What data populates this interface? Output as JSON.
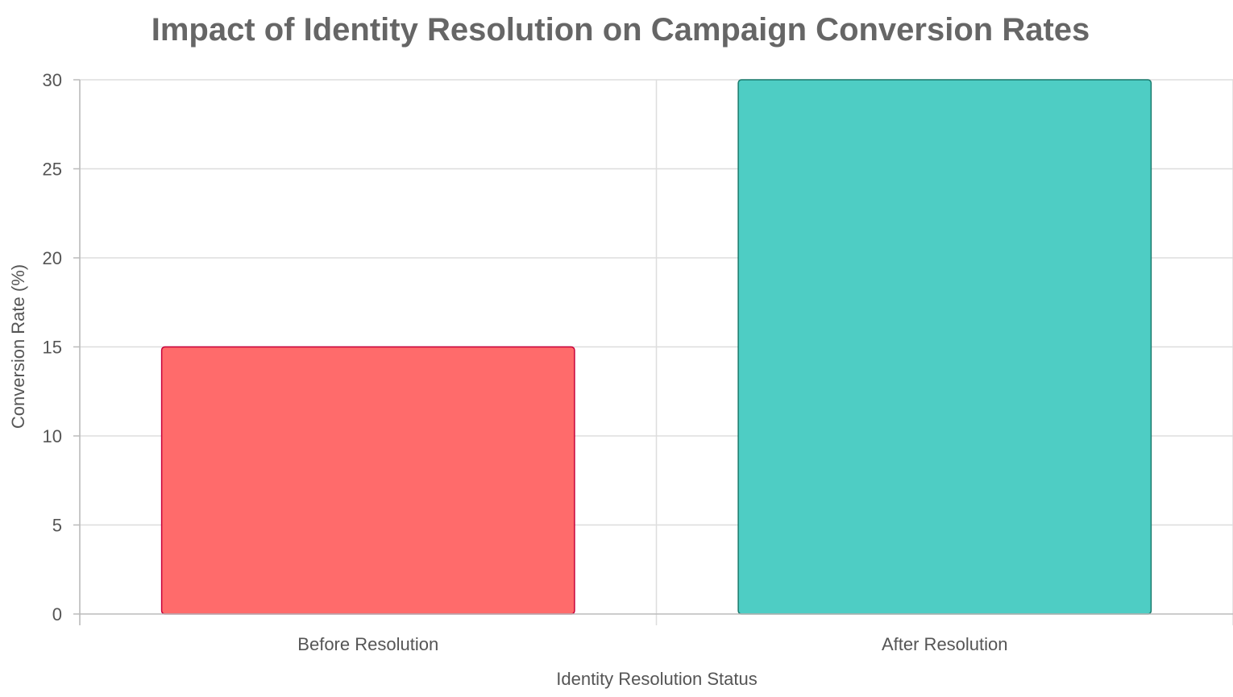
{
  "chart_data": {
    "type": "bar",
    "title": "Impact of Identity Resolution on Campaign Conversion Rates",
    "xlabel": "Identity Resolution Status",
    "ylabel": "Conversion Rate (%)",
    "categories": [
      "Before Resolution",
      "After Resolution"
    ],
    "values": [
      15,
      30
    ],
    "ylim": [
      0,
      30
    ],
    "yticks": [
      0,
      5,
      10,
      15,
      20,
      25,
      30
    ],
    "grid": true,
    "colors": {
      "bars": [
        "#FF6B6B",
        "#4ECDC4"
      ],
      "bar_outlines": [
        "#C70039",
        "#1A7A6C"
      ]
    }
  }
}
